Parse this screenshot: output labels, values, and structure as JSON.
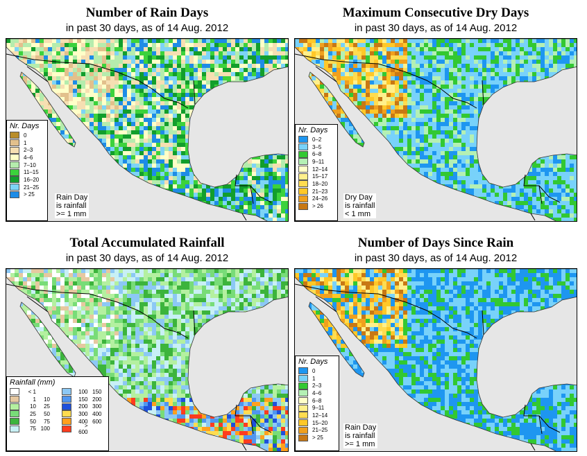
{
  "panels": [
    {
      "id": "rain-days",
      "title": "Number of Rain Days",
      "subtitle": "in past 30 days, as of  14 Aug. 2012",
      "legend": {
        "title": "Nr. Days",
        "items": [
          {
            "label": "0",
            "color": "#b98d2a"
          },
          {
            "label": "1",
            "color": "#e2c08c"
          },
          {
            "label": "2–3",
            "color": "#f6dfb2"
          },
          {
            "label": "4–6",
            "color": "#ffffc8"
          },
          {
            "label": "7–10",
            "color": "#b5ecad"
          },
          {
            "label": "11–15",
            "color": "#3cd23c"
          },
          {
            "label": "16–20",
            "color": "#129e2c"
          },
          {
            "label": "21–25",
            "color": "#7dd4f6"
          },
          {
            "label": "> 25",
            "color": "#1e8ce6"
          }
        ]
      },
      "note": [
        "Rain Day",
        "is rainfall",
        ">= 1 mm"
      ]
    },
    {
      "id": "dry-days",
      "title": "Maximum Consecutive Dry Days",
      "subtitle": "in past 30 days, as of  14 Aug. 2012",
      "legend": {
        "title": "Nr. Days",
        "items": [
          {
            "label": "0–2",
            "color": "#1e96f0"
          },
          {
            "label": "3–5",
            "color": "#78d2fa"
          },
          {
            "label": "6–8",
            "color": "#32c832"
          },
          {
            "label": "9–11",
            "color": "#b4f0b4"
          },
          {
            "label": "12–14",
            "color": "#ffffc8"
          },
          {
            "label": "15–17",
            "color": "#fff08c"
          },
          {
            "label": "18–20",
            "color": "#ffdc50"
          },
          {
            "label": "21–23",
            "color": "#ffc828"
          },
          {
            "label": "24–26",
            "color": "#f0a01e"
          },
          {
            "label": "> 26",
            "color": "#c87814"
          }
        ]
      },
      "note": [
        "Dry Day",
        "is rainfall",
        "< 1 mm"
      ]
    },
    {
      "id": "accum-rainfall",
      "title": "Total Accumulated Rainfall",
      "subtitle": "in past 30 days, as of  14 Aug. 2012",
      "legend": {
        "title": "Rainfall (mm)",
        "items": [
          {
            "low": "< 1",
            "high": "",
            "color": "#ffffff"
          },
          {
            "low": "100",
            "high": "150",
            "color": "#8cc8f5"
          },
          {
            "low": "1",
            "high": "10",
            "color": "#e6c8a0"
          },
          {
            "low": "150",
            "high": "200",
            "color": "#5096f0"
          },
          {
            "low": "10",
            "high": "25",
            "color": "#b4f0a0"
          },
          {
            "low": "200",
            "high": "300",
            "color": "#1e50dc"
          },
          {
            "low": "25",
            "high": "50",
            "color": "#78dc78"
          },
          {
            "low": "300",
            "high": "400",
            "color": "#ffdc50"
          },
          {
            "low": "50",
            "high": "75",
            "color": "#3cb43c"
          },
          {
            "low": "400",
            "high": "600",
            "color": "#ffa01e"
          },
          {
            "low": "75",
            "high": "100",
            "color": "#c8f0f5"
          },
          {
            "low": "> 600",
            "high": "",
            "color": "#ff3c1e"
          }
        ]
      },
      "note": []
    },
    {
      "id": "days-since-rain",
      "title": "Number of Days Since Rain",
      "subtitle": "in past 30 days, as of  14 Aug. 2012",
      "legend": {
        "title": "Nr. Days",
        "items": [
          {
            "label": "0",
            "color": "#1e96f0"
          },
          {
            "label": "1",
            "color": "#78d2fa"
          },
          {
            "label": "2–3",
            "color": "#32c832"
          },
          {
            "label": "4–6",
            "color": "#b4f0b4"
          },
          {
            "label": "6–8",
            "color": "#ffffc8"
          },
          {
            "label": "9–11",
            "color": "#fff08c"
          },
          {
            "label": "12–14",
            "color": "#ffdc50"
          },
          {
            "label": "15–20",
            "color": "#ffc828"
          },
          {
            "label": "21–25",
            "color": "#f0a01e"
          },
          {
            "label": "> 25",
            "color": "#c87814"
          }
        ]
      },
      "note": [
        "Rain Day",
        "is rainfall",
        ">= 1 mm"
      ]
    }
  ],
  "map_colors": {
    "ocean": "#e6e6e6",
    "border": "#000000"
  }
}
